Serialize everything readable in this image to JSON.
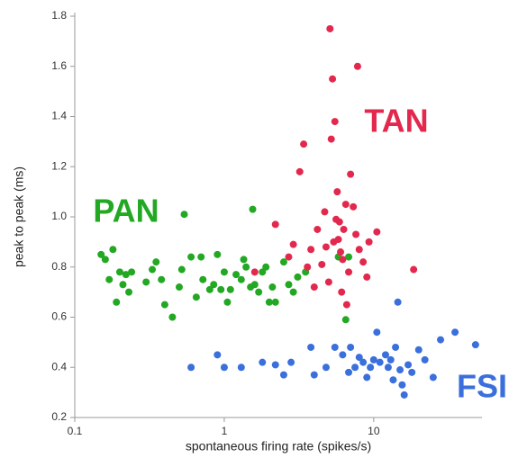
{
  "chart_data": {
    "type": "scatter",
    "x_label": "spontaneous firing rate (spikes/s)",
    "y_label": "peak to peak (ms)",
    "xscale": "log",
    "xlim": [
      0.1,
      53
    ],
    "ylim": [
      0.2,
      1.8
    ],
    "xticks": [
      0.1,
      1,
      10
    ],
    "yticks": [
      0.2,
      0.4,
      0.6,
      0.8,
      {
        "value": 1.0,
        "label": "1.0"
      },
      1.2,
      1.4,
      1.6,
      1.8
    ],
    "series": [
      {
        "name": "PAN",
        "color": "#23a823",
        "x": [
          0.15,
          0.16,
          0.17,
          0.18,
          0.19,
          0.2,
          0.21,
          0.22,
          0.23,
          0.24,
          0.3,
          0.33,
          0.35,
          0.38,
          0.4,
          0.45,
          0.5,
          0.52,
          0.54,
          0.6,
          0.65,
          0.7,
          0.72,
          0.8,
          0.85,
          0.9,
          0.95,
          1.0,
          1.05,
          1.1,
          1.2,
          1.3,
          1.35,
          1.4,
          1.5,
          1.55,
          1.6,
          1.7,
          1.8,
          1.9,
          2.0,
          2.1,
          2.2,
          2.5,
          2.7,
          2.9,
          3.1,
          3.5,
          6.5,
          6.8,
          5.8
        ],
        "values": [
          0.85,
          0.83,
          0.75,
          0.87,
          0.66,
          0.78,
          0.73,
          0.77,
          0.7,
          0.78,
          0.74,
          0.79,
          0.82,
          0.75,
          0.65,
          0.6,
          0.72,
          0.79,
          1.01,
          0.84,
          0.68,
          0.84,
          0.75,
          0.71,
          0.73,
          0.85,
          0.71,
          0.78,
          0.66,
          0.71,
          0.77,
          0.75,
          0.83,
          0.8,
          0.72,
          1.03,
          0.73,
          0.7,
          0.78,
          0.8,
          0.66,
          0.72,
          0.66,
          0.82,
          0.73,
          0.7,
          0.76,
          0.78,
          0.59,
          0.84,
          0.84
        ]
      },
      {
        "name": "TAN",
        "color": "#e3284e",
        "x": [
          1.6,
          2.2,
          2.7,
          2.9,
          3.2,
          3.4,
          3.6,
          3.8,
          4.2,
          4.5,
          4.7,
          4.8,
          5.0,
          5.1,
          5.2,
          5.3,
          5.5,
          5.6,
          5.7,
          5.8,
          6.0,
          6.1,
          6.2,
          6.3,
          6.5,
          6.8,
          7.0,
          7.3,
          7.6,
          7.8,
          8.0,
          8.5,
          9.0,
          9.3,
          10.5,
          18.5,
          5.4,
          6.6,
          4.0,
          5.9
        ],
        "values": [
          0.78,
          0.97,
          0.84,
          0.89,
          1.18,
          1.29,
          0.8,
          0.87,
          0.95,
          0.81,
          1.02,
          0.88,
          0.74,
          1.75,
          1.31,
          1.55,
          1.38,
          0.99,
          1.1,
          0.91,
          0.86,
          0.7,
          0.83,
          0.95,
          1.05,
          0.78,
          1.17,
          1.04,
          0.93,
          1.6,
          0.87,
          0.82,
          0.76,
          0.9,
          0.94,
          0.79,
          0.9,
          0.65,
          0.72,
          0.98
        ]
      },
      {
        "name": "FSI",
        "color": "#3a6fdc",
        "x": [
          0.6,
          0.9,
          1.0,
          1.3,
          1.8,
          2.2,
          2.5,
          2.8,
          3.8,
          4.0,
          4.8,
          5.5,
          6.2,
          6.8,
          7.0,
          7.5,
          8.0,
          8.5,
          9.0,
          9.5,
          10,
          10.5,
          11,
          12,
          12.5,
          13,
          14,
          14.5,
          15,
          15.5,
          16,
          17,
          18,
          20,
          22,
          25,
          28,
          35,
          48,
          13.5
        ],
        "values": [
          0.4,
          0.45,
          0.4,
          0.4,
          0.42,
          0.41,
          0.37,
          0.42,
          0.48,
          0.37,
          0.4,
          0.48,
          0.45,
          0.38,
          0.48,
          0.4,
          0.44,
          0.42,
          0.36,
          0.4,
          0.43,
          0.54,
          0.42,
          0.45,
          0.4,
          0.43,
          0.48,
          0.66,
          0.39,
          0.33,
          0.29,
          0.41,
          0.38,
          0.47,
          0.43,
          0.36,
          0.51,
          0.54,
          0.49,
          0.35
        ]
      }
    ]
  }
}
